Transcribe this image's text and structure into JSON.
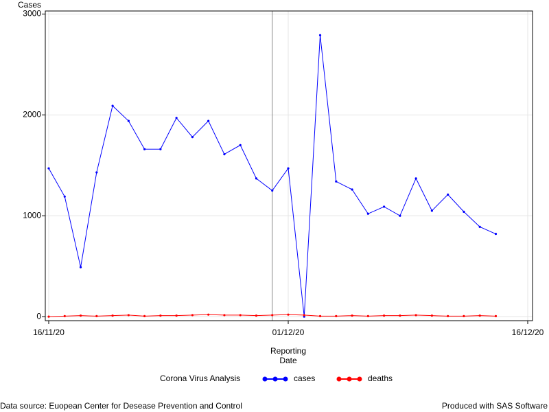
{
  "chart_data": {
    "type": "line",
    "y_label": "Cases",
    "x_label_lines": [
      "Reporting",
      "Date"
    ],
    "legend_title": "Corona Virus Analysis",
    "footnote_left": "Data source: Euopean Center for Desease Prevention and Control",
    "footnote_right": "Produced with SAS Software",
    "x": [
      "16/11/20",
      "17/11/20",
      "18/11/20",
      "19/11/20",
      "20/11/20",
      "21/11/20",
      "22/11/20",
      "23/11/20",
      "24/11/20",
      "25/11/20",
      "26/11/20",
      "27/11/20",
      "28/11/20",
      "29/11/20",
      "30/11/20",
      "01/12/20",
      "02/12/20",
      "03/12/20",
      "04/12/20",
      "05/12/20",
      "06/12/20",
      "07/12/20",
      "08/12/20",
      "09/12/20",
      "10/12/20",
      "11/12/20",
      "12/12/20",
      "13/12/20",
      "14/12/20"
    ],
    "series": [
      {
        "name": "cases",
        "color": "#0000ff",
        "values": [
          1470,
          1190,
          490,
          1430,
          2090,
          1940,
          1660,
          1660,
          1970,
          1780,
          1940,
          1610,
          1700,
          1370,
          1250,
          1470,
          0,
          2790,
          1340,
          1260,
          1020,
          1090,
          1000,
          1370,
          1050,
          1210,
          1040,
          890,
          820
        ]
      },
      {
        "name": "deaths",
        "color": "#ff0000",
        "values": [
          0,
          5,
          10,
          5,
          10,
          15,
          5,
          10,
          10,
          15,
          20,
          15,
          15,
          10,
          15,
          20,
          15,
          5,
          5,
          10,
          5,
          10,
          10,
          15,
          10,
          5,
          5,
          10,
          5
        ]
      }
    ],
    "xlim": [
      "16/11/20",
      "16/12/20"
    ],
    "xticks": [
      "16/11/20",
      "01/12/20",
      "16/12/20"
    ],
    "ylim": [
      -40,
      3030
    ],
    "yticks": [
      0,
      1000,
      2000,
      3000
    ],
    "reference_line_x": "30/11/20",
    "grid": true
  }
}
